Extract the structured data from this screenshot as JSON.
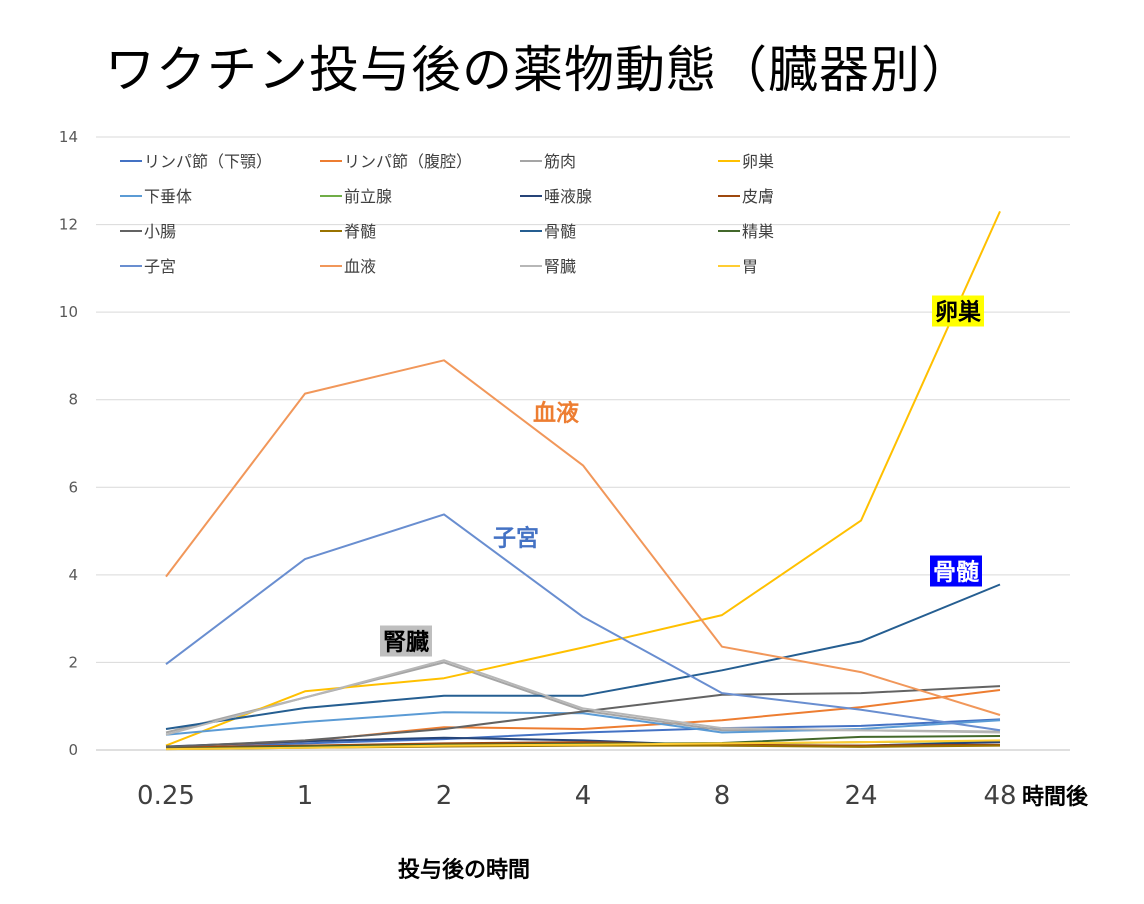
{
  "title": "ワクチン投与後の薬物動態（臓器別）",
  "chart_data": {
    "type": "line",
    "categories": [
      "0.25",
      "1",
      "2",
      "4",
      "8",
      "24",
      "48"
    ],
    "x_unit_label": "時間後",
    "xlabel": "投与後の時間",
    "ylabel": "",
    "ylim": [
      0,
      14
    ],
    "yticks": [
      0,
      2,
      4,
      6,
      8,
      10,
      12,
      14
    ],
    "grid": true,
    "legend_position": "top-left",
    "series": [
      {
        "name": "リンパ節（下顎）",
        "color": "#4472C4",
        "values": [
          0.05,
          0.15,
          0.25,
          0.4,
          0.5,
          0.55,
          0.7
        ]
      },
      {
        "name": "リンパ節（腹腔）",
        "color": "#ED7D31",
        "values": [
          0.06,
          0.2,
          0.52,
          0.48,
          0.68,
          0.98,
          1.37
        ]
      },
      {
        "name": "筋肉",
        "color": "#A5A5A5",
        "values": [
          0.4,
          1.2,
          2.0,
          0.9,
          0.45,
          0.45,
          0.42
        ]
      },
      {
        "name": "卵巣",
        "color": "#FFC000",
        "values": [
          0.1,
          1.34,
          1.64,
          2.34,
          3.08,
          5.24,
          12.3
        ]
      },
      {
        "name": "下垂体",
        "color": "#5B9BD5",
        "values": [
          0.35,
          0.64,
          0.86,
          0.84,
          0.4,
          0.48,
          0.68
        ]
      },
      {
        "name": "前立腺",
        "color": "#70AD47",
        "values": [
          0.03,
          0.06,
          0.1,
          0.12,
          0.14,
          0.18,
          0.2
        ]
      },
      {
        "name": "唾液腺",
        "color": "#264478",
        "values": [
          0.08,
          0.2,
          0.28,
          0.22,
          0.1,
          0.1,
          0.18
        ]
      },
      {
        "name": "皮膚",
        "color": "#9E480E",
        "values": [
          0.05,
          0.1,
          0.15,
          0.18,
          0.12,
          0.1,
          0.12
        ]
      },
      {
        "name": "小腸",
        "color": "#636363",
        "values": [
          0.07,
          0.22,
          0.48,
          0.88,
          1.26,
          1.3,
          1.46
        ]
      },
      {
        "name": "脊髄",
        "color": "#997300",
        "values": [
          0.02,
          0.05,
          0.08,
          0.1,
          0.1,
          0.07,
          0.1
        ]
      },
      {
        "name": "骨髄",
        "color": "#255E91",
        "values": [
          0.48,
          0.96,
          1.24,
          1.24,
          1.82,
          2.48,
          3.78
        ]
      },
      {
        "name": "精巣",
        "color": "#43682B",
        "values": [
          0.03,
          0.08,
          0.12,
          0.14,
          0.16,
          0.3,
          0.32
        ]
      },
      {
        "name": "子宮",
        "color": "#698ED0",
        "values": [
          1.96,
          4.36,
          5.38,
          3.04,
          1.3,
          0.92,
          0.45
        ]
      },
      {
        "name": "血液",
        "color": "#F1975A",
        "values": [
          3.96,
          8.14,
          8.9,
          6.5,
          2.36,
          1.78,
          0.8
        ]
      },
      {
        "name": "腎臓",
        "color": "#B7B7B7",
        "values": [
          0.35,
          1.2,
          2.05,
          0.95,
          0.5,
          0.45,
          0.4
        ]
      },
      {
        "name": "胃",
        "color": "#FFCD33",
        "values": [
          0.02,
          0.05,
          0.1,
          0.12,
          0.15,
          0.18,
          0.22
        ]
      }
    ],
    "annotations": [
      {
        "text": "卵巣",
        "series": "卵巣",
        "color": "#000000",
        "background": "#FFFF00"
      },
      {
        "text": "血液",
        "series": "血液",
        "color": "#ED7D31",
        "background": ""
      },
      {
        "text": "子宮",
        "series": "子宮",
        "color": "#4472C4",
        "background": ""
      },
      {
        "text": "骨髄",
        "series": "骨髄",
        "color": "#FFFFFF",
        "background": "#0000FF"
      },
      {
        "text": "腎臓",
        "series": "腎臓",
        "color": "#000000",
        "background": "#BFBFBF"
      }
    ]
  }
}
